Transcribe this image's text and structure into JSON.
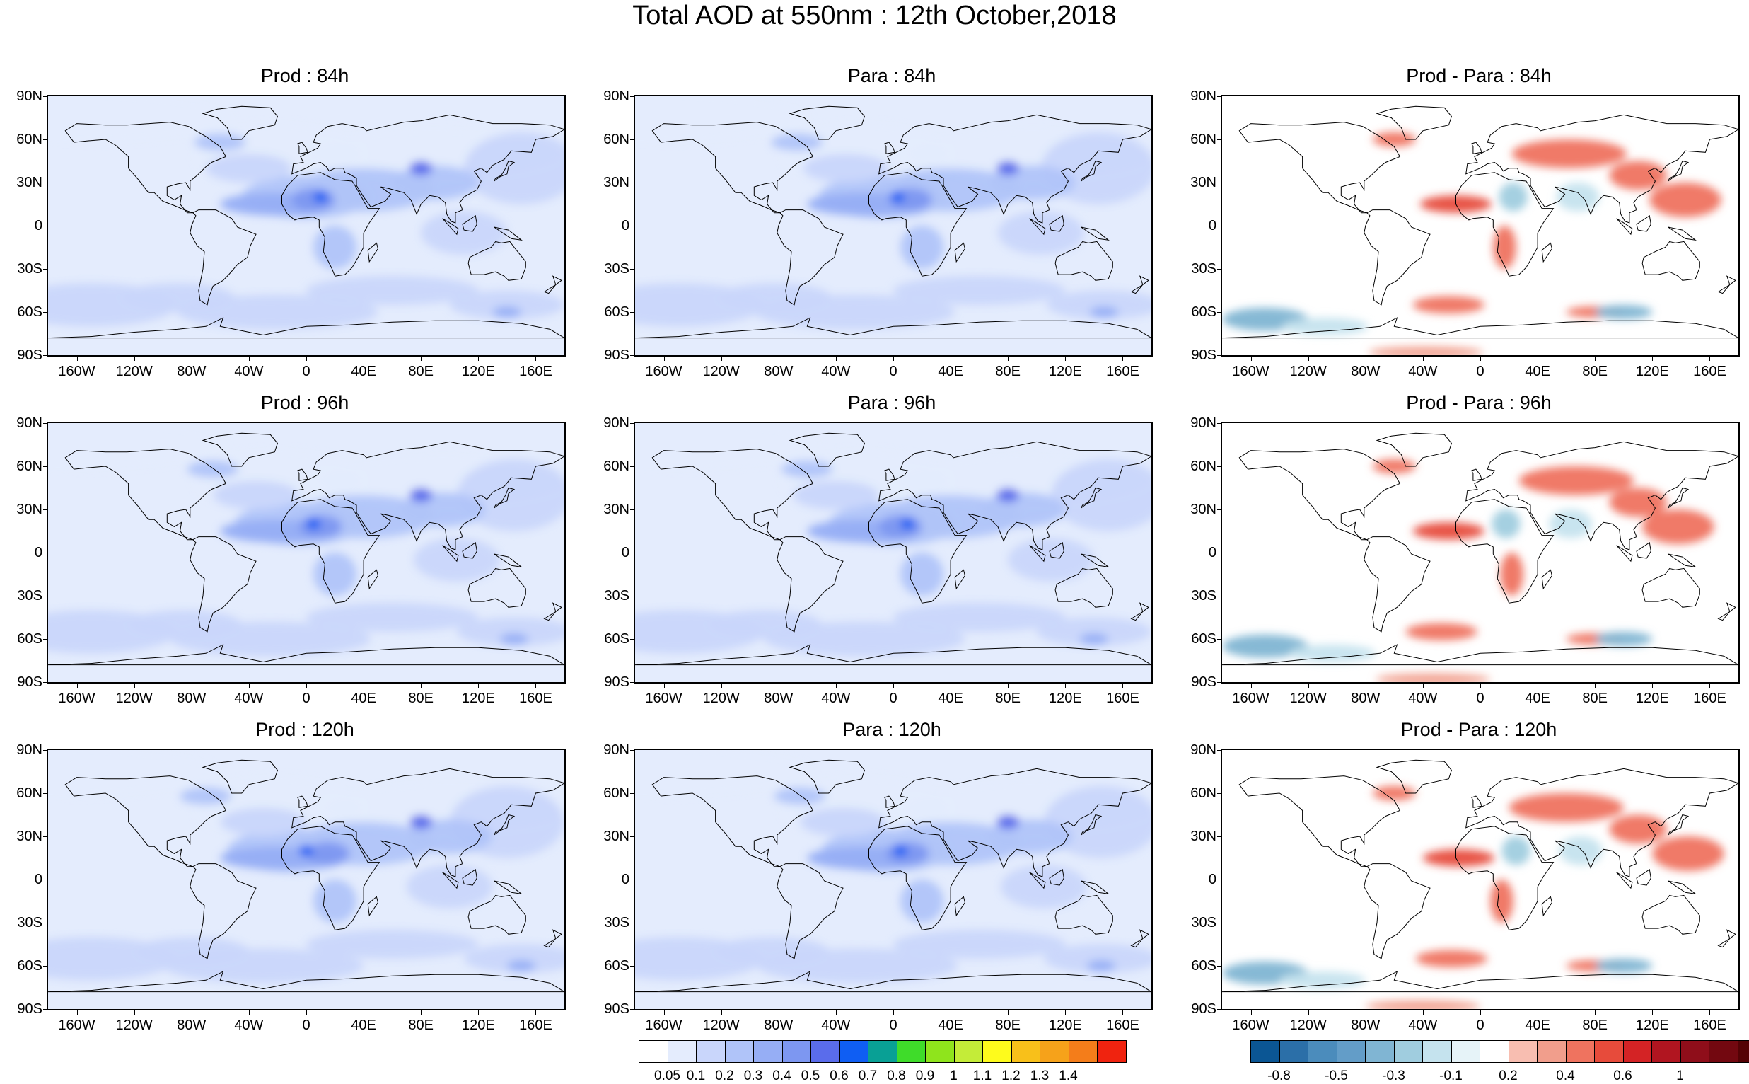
{
  "figure_title": "Total AOD at 550nm : 12th October,2018",
  "chart_data": [
    {
      "type": "heatmap",
      "title": "Prod : 84h",
      "field": "aod"
    },
    {
      "type": "heatmap",
      "title": "Para : 84h",
      "field": "aod"
    },
    {
      "type": "heatmap",
      "title": "Prod - Para : 84h",
      "field": "diff"
    },
    {
      "type": "heatmap",
      "title": "Prod : 96h",
      "field": "aod"
    },
    {
      "type": "heatmap",
      "title": "Para : 96h",
      "field": "aod"
    },
    {
      "type": "heatmap",
      "title": "Prod - Para : 96h",
      "field": "diff"
    },
    {
      "type": "heatmap",
      "title": "Prod : 120h",
      "field": "aod"
    },
    {
      "type": "heatmap",
      "title": "Para : 120h",
      "field": "aod"
    },
    {
      "type": "heatmap",
      "title": "Prod - Para : 120h",
      "field": "diff"
    }
  ],
  "axes": {
    "lat_ticks": [
      "90N",
      "60N",
      "30N",
      "0",
      "30S",
      "60S",
      "90S"
    ],
    "lat_values": [
      90,
      60,
      30,
      0,
      -30,
      -60,
      -90
    ],
    "lon_ticks": [
      "160W",
      "120W",
      "80W",
      "40W",
      "0",
      "40E",
      "80E",
      "120E",
      "160E"
    ],
    "lon_values": [
      -160,
      -120,
      -80,
      -40,
      0,
      40,
      80,
      120,
      160
    ],
    "lon_range": [
      -180,
      180
    ],
    "lat_range": [
      -90,
      90
    ]
  },
  "colorbars": {
    "aod": {
      "levels": [
        "0.05",
        "0.1",
        "0.2",
        "0.3",
        "0.4",
        "0.5",
        "0.6",
        "0.7",
        "0.8",
        "0.9",
        "1",
        "1.1",
        "1.2",
        "1.3",
        "1.4"
      ],
      "colors": [
        "#ffffff",
        "#e4ecfd",
        "#c9d6fb",
        "#b0c4f9",
        "#96aef5",
        "#7d97f1",
        "#5a6ceb",
        "#0f5ef3",
        "#09a095",
        "#3fdc2a",
        "#8fe41c",
        "#c4ec38",
        "#fefb1c",
        "#f8c01a",
        "#f6a21a",
        "#f47d1a",
        "#f0230f"
      ]
    },
    "diff": {
      "levels": [
        "-0.8",
        "",
        "-0.5",
        "",
        "-0.3",
        "",
        "-0.1",
        "",
        "0.2",
        "",
        "0.4",
        "",
        "0.6",
        "",
        "1"
      ],
      "colors": [
        "#0b5694",
        "#2b6fa8",
        "#4b8cbc",
        "#639dc8",
        "#80b5d3",
        "#a0cddf",
        "#c5e3ee",
        "#e6f3f8",
        "#ffffff",
        "#f8beb1",
        "#f19e8c",
        "#ef735f",
        "#e74b3b",
        "#d42325",
        "#b11520",
        "#8f0e1a",
        "#730810",
        "#540205"
      ]
    }
  },
  "colors": {
    "land_outline": "#000000",
    "background": "#ffffff"
  }
}
